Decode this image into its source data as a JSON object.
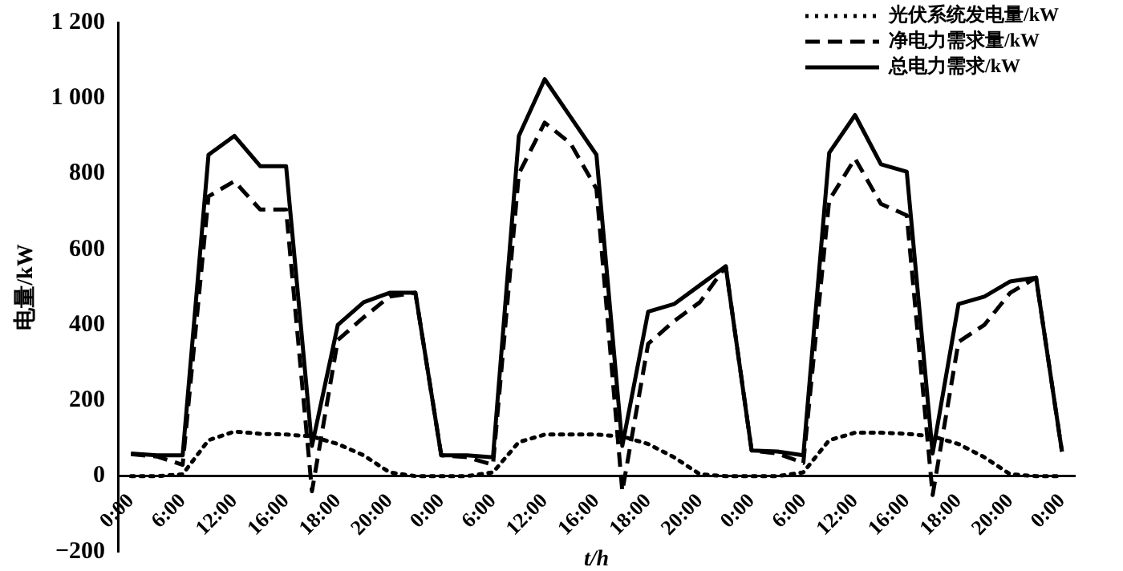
{
  "chart_data": {
    "type": "line",
    "xlabel": "t/h",
    "ylabel": "电量/kW",
    "categories": [
      "0:00",
      null,
      "6:00",
      null,
      "12:00",
      null,
      "16:00",
      null,
      "18:00",
      null,
      "20:00",
      null,
      "0:00",
      null,
      "6:00",
      null,
      "12:00",
      null,
      "16:00",
      null,
      "18:00",
      null,
      "20:00",
      null,
      "0:00",
      null,
      "6:00",
      null,
      "12:00",
      null,
      "16:00",
      null,
      "18:00",
      null,
      "20:00",
      null,
      "0:00"
    ],
    "series": [
      {
        "name": "光伏系统发电量/kW",
        "color": "#000000",
        "line_style": "dotted",
        "values": [
          0,
          0,
          5,
          95,
          118,
          112,
          110,
          105,
          85,
          55,
          10,
          0,
          0,
          0,
          10,
          90,
          110,
          110,
          110,
          105,
          85,
          50,
          5,
          0,
          0,
          0,
          10,
          95,
          115,
          115,
          112,
          105,
          85,
          50,
          5,
          0,
          0
        ]
      },
      {
        "name": "净电力需求量/kW",
        "color": "#000000",
        "line_style": "dashed",
        "values": [
          58,
          52,
          30,
          740,
          780,
          705,
          705,
          -40,
          360,
          420,
          475,
          485,
          55,
          50,
          30,
          800,
          935,
          880,
          760,
          -40,
          350,
          410,
          460,
          555,
          68,
          60,
          35,
          730,
          840,
          720,
          690,
          -50,
          355,
          400,
          485,
          525,
          65
        ]
      },
      {
        "name": "总电力需求/kW",
        "color": "#000000",
        "line_style": "solid",
        "values": [
          60,
          55,
          55,
          850,
          900,
          820,
          820,
          80,
          400,
          460,
          485,
          485,
          55,
          55,
          50,
          900,
          1050,
          950,
          850,
          80,
          435,
          455,
          505,
          555,
          68,
          65,
          55,
          855,
          955,
          825,
          805,
          60,
          455,
          475,
          515,
          525,
          65
        ]
      }
    ],
    "ylim": [
      -200,
      1200
    ],
    "yticks": [
      {
        "value": -200,
        "label": "−200"
      },
      0,
      200,
      400,
      600,
      800,
      {
        "value": 1000,
        "label": "1 000"
      },
      {
        "value": 1200,
        "label": "1 200"
      }
    ],
    "grid": false,
    "legend": "top right",
    "marker": "none"
  }
}
